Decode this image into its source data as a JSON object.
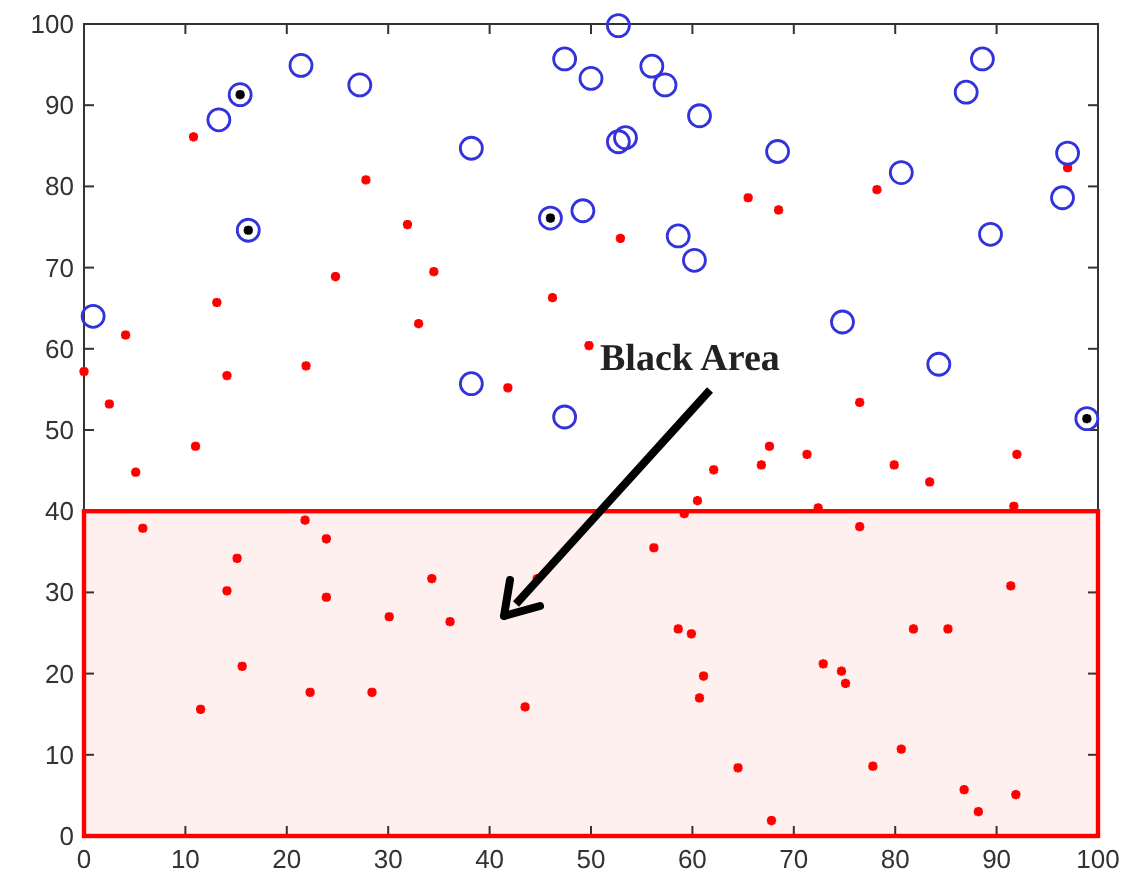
{
  "chart_data": {
    "type": "scatter",
    "xlim": [
      0,
      100
    ],
    "ylim": [
      0,
      100
    ],
    "xticks": [
      0,
      10,
      20,
      30,
      40,
      50,
      60,
      70,
      80,
      90,
      100
    ],
    "yticks": [
      0,
      10,
      20,
      30,
      40,
      50,
      60,
      70,
      80,
      90,
      100
    ],
    "annotations": [
      "Black Area"
    ],
    "bands": [
      {
        "axis": "y",
        "from": 0,
        "to": 40,
        "color": "#ff0000"
      }
    ],
    "series": [
      {
        "color": "#ff0000",
        "marker": "cross",
        "x": [
          10.8,
          27.8,
          31.9,
          34.5,
          24.8,
          13.1,
          46.2,
          33,
          4.1,
          49.8,
          0,
          14.1,
          21.9,
          41.8,
          2.5,
          65.5,
          68.5,
          52.9,
          78.2,
          97,
          76.5,
          5.1,
          11,
          5.8,
          21.8,
          23.9,
          15.1,
          14.1,
          23.9,
          34.3,
          30.1,
          36.1,
          15.6,
          11.5,
          22.3,
          28.4,
          43.5,
          44.7,
          67.6,
          66.8,
          71.3,
          62.1,
          79.9,
          83.4,
          92,
          60.5,
          59.2,
          72.4,
          91.7,
          76.5,
          56.2,
          91.4,
          58.6,
          59.9,
          81.8,
          85.2,
          72.9,
          74.7,
          75.1,
          61.1,
          60.7,
          64.5,
          77.8,
          80.6,
          86.8,
          88.2,
          91.9,
          67.8
        ],
        "values": [
          86.1,
          80.8,
          75.3,
          69.5,
          68.9,
          65.7,
          66.3,
          63.1,
          61.7,
          60.4,
          57.2,
          56.7,
          57.9,
          55.2,
          53.2,
          78.6,
          77.1,
          73.6,
          79.6,
          82.3,
          53.4,
          44.8,
          48,
          37.9,
          38.9,
          36.6,
          34.2,
          30.2,
          29.4,
          31.7,
          27,
          26.4,
          20.9,
          15.6,
          17.7,
          17.7,
          15.9,
          31.7,
          48,
          45.7,
          47,
          45.1,
          45.7,
          43.6,
          47,
          41.3,
          39.7,
          40.4,
          40.6,
          38.1,
          35.5,
          30.8,
          25.5,
          24.9,
          25.5,
          25.5,
          21.2,
          20.3,
          18.8,
          19.7,
          17,
          8.4,
          8.6,
          10.7,
          5.7,
          3,
          5.1,
          1.9
        ]
      },
      {
        "color": "#3333dd",
        "marker": "circle",
        "x": [
          0.9,
          13.3,
          21.4,
          27.2,
          38.2,
          38.2,
          47.4,
          49.2,
          50,
          47.4,
          52.7,
          56,
          57.3,
          60.7,
          52.7,
          53.4,
          68.4,
          58.6,
          60.2,
          80.6,
          74.8,
          84.3,
          87,
          88.6,
          97,
          96.5,
          89.4,
          15.4,
          16.2,
          46,
          98.9
        ],
        "values": [
          64,
          88.2,
          94.9,
          92.5,
          84.7,
          55.7,
          95.7,
          77,
          93.3,
          51.6,
          99.8,
          94.8,
          92.5,
          88.7,
          85.5,
          86,
          84.3,
          73.9,
          70.9,
          81.7,
          63.3,
          58.1,
          91.6,
          95.7,
          84.1,
          78.6,
          74.1,
          91.3,
          74.6,
          76.1,
          51.4
        ]
      },
      {
        "color": "#000000",
        "marker": "cross",
        "x": [
          15.4,
          16.2,
          46,
          98.9
        ],
        "values": [
          91.3,
          74.6,
          76.1,
          51.4
        ]
      }
    ]
  }
}
